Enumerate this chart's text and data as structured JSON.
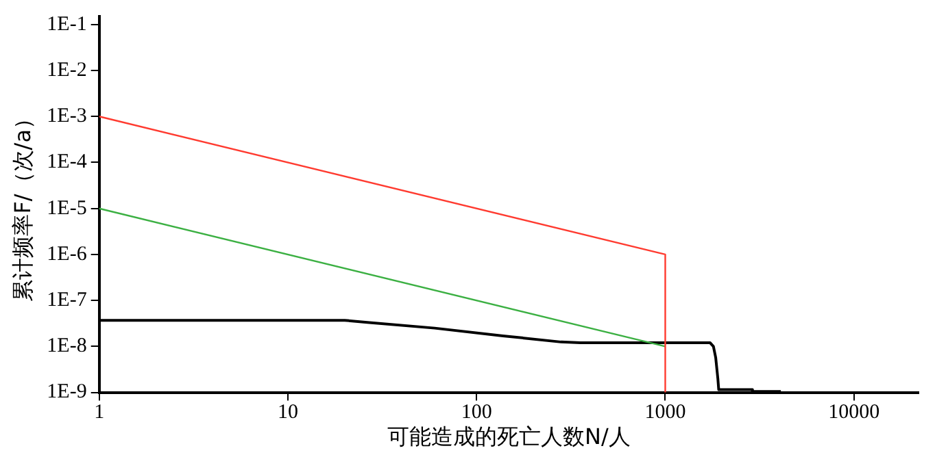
{
  "chart_data": {
    "type": "line",
    "xlabel": "可能造成的死亡人数N/人",
    "ylabel": "累计频率F/（次/a）",
    "log": "xy",
    "grid": false,
    "legend": false,
    "xlim": [
      1,
      22000
    ],
    "xticks": [
      1,
      10,
      100,
      1000,
      10000
    ],
    "ylim": [
      1e-09,
      0.15
    ],
    "yticks": [
      {
        "value": 1e-09,
        "label": "1E-9"
      },
      {
        "value": 1e-08,
        "label": "1E-8"
      },
      {
        "value": 1e-07,
        "label": "1E-7"
      },
      {
        "value": 1e-06,
        "label": "1E-6"
      },
      {
        "value": 1e-05,
        "label": "1E-5"
      },
      {
        "value": 0.0001,
        "label": "1E-4"
      },
      {
        "value": 0.001,
        "label": "1E-3"
      },
      {
        "value": 0.01,
        "label": "1E-2"
      },
      {
        "value": 0.1,
        "label": "1E-1"
      }
    ],
    "series": [
      {
        "color": "#ff3b30",
        "x": [
          1,
          1000,
          1000
        ],
        "values": [
          0.001,
          1e-06,
          1e-09
        ]
      },
      {
        "color": "#3cb043",
        "x": [
          1,
          1000
        ],
        "values": [
          1e-05,
          1e-08
        ]
      },
      {
        "color": "#000000",
        "x": [
          1,
          20,
          27,
          60,
          138,
          280,
          355,
          1730,
          1800,
          1850,
          1900,
          1920,
          2880,
          2900,
          4100
        ],
        "values": [
          3.7e-08,
          3.7e-08,
          3.3e-08,
          2.5e-08,
          1.7e-08,
          1.25e-08,
          1.2e-08,
          1.2e-08,
          1e-08,
          5.8e-09,
          2e-09,
          1.15e-09,
          1.15e-09,
          1.05e-09,
          1.05e-09
        ]
      }
    ]
  }
}
